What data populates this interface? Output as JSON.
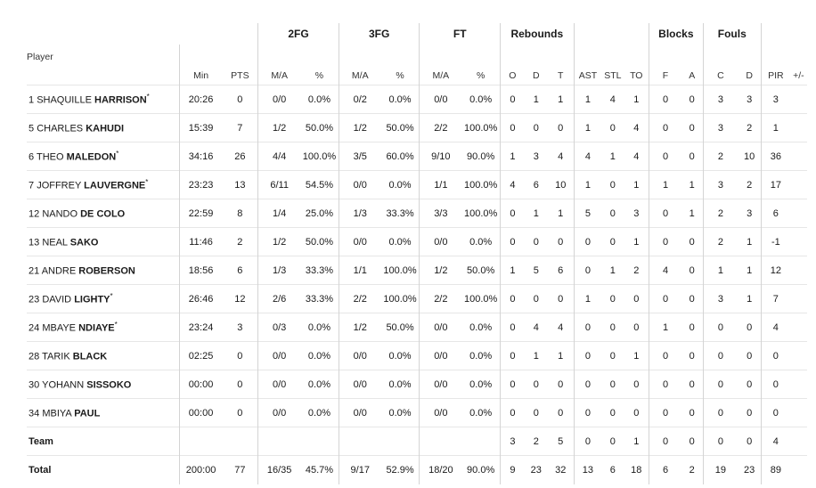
{
  "groups": {
    "fg2": "2FG",
    "fg3": "3FG",
    "ft": "FT",
    "rebounds": "Rebounds",
    "blocks": "Blocks",
    "fouls": "Fouls"
  },
  "columns": [
    "Player",
    "Min",
    "PTS",
    "M/A",
    "%",
    "M/A",
    "%",
    "M/A",
    "%",
    "O",
    "D",
    "T",
    "AST",
    "STL",
    "TO",
    "F",
    "A",
    "C",
    "D",
    "PIR",
    "+/-"
  ],
  "players": [
    {
      "num": "1",
      "first": "SHAQUILLE",
      "last": "HARRISON",
      "star": "*",
      "stats": [
        "20:26",
        "0",
        "0/0",
        "0.0%",
        "0/2",
        "0.0%",
        "0/0",
        "0.0%",
        "0",
        "1",
        "1",
        "1",
        "4",
        "1",
        "0",
        "0",
        "3",
        "3",
        "3",
        ""
      ]
    },
    {
      "num": "5",
      "first": "CHARLES",
      "last": "KAHUDI",
      "star": "",
      "stats": [
        "15:39",
        "7",
        "1/2",
        "50.0%",
        "1/2",
        "50.0%",
        "2/2",
        "100.0%",
        "0",
        "0",
        "0",
        "1",
        "0",
        "4",
        "0",
        "0",
        "3",
        "2",
        "1",
        ""
      ]
    },
    {
      "num": "6",
      "first": "THEO",
      "last": "MALEDON",
      "star": "*",
      "stats": [
        "34:16",
        "26",
        "4/4",
        "100.0%",
        "3/5",
        "60.0%",
        "9/10",
        "90.0%",
        "1",
        "3",
        "4",
        "4",
        "1",
        "4",
        "0",
        "0",
        "2",
        "10",
        "36",
        ""
      ]
    },
    {
      "num": "7",
      "first": "JOFFREY",
      "last": "LAUVERGNE",
      "star": "*",
      "stats": [
        "23:23",
        "13",
        "6/11",
        "54.5%",
        "0/0",
        "0.0%",
        "1/1",
        "100.0%",
        "4",
        "6",
        "10",
        "1",
        "0",
        "1",
        "1",
        "1",
        "3",
        "2",
        "17",
        ""
      ]
    },
    {
      "num": "12",
      "first": "NANDO",
      "last": "DE COLO",
      "star": "",
      "stats": [
        "22:59",
        "8",
        "1/4",
        "25.0%",
        "1/3",
        "33.3%",
        "3/3",
        "100.0%",
        "0",
        "1",
        "1",
        "5",
        "0",
        "3",
        "0",
        "1",
        "2",
        "3",
        "6",
        ""
      ]
    },
    {
      "num": "13",
      "first": "NEAL",
      "last": "SAKO",
      "star": "",
      "stats": [
        "11:46",
        "2",
        "1/2",
        "50.0%",
        "0/0",
        "0.0%",
        "0/0",
        "0.0%",
        "0",
        "0",
        "0",
        "0",
        "0",
        "1",
        "0",
        "0",
        "2",
        "1",
        "-1",
        ""
      ]
    },
    {
      "num": "21",
      "first": "ANDRE",
      "last": "ROBERSON",
      "star": "",
      "stats": [
        "18:56",
        "6",
        "1/3",
        "33.3%",
        "1/1",
        "100.0%",
        "1/2",
        "50.0%",
        "1",
        "5",
        "6",
        "0",
        "1",
        "2",
        "4",
        "0",
        "1",
        "1",
        "12",
        ""
      ]
    },
    {
      "num": "23",
      "first": "DAVID",
      "last": "LIGHTY",
      "star": "*",
      "stats": [
        "26:46",
        "12",
        "2/6",
        "33.3%",
        "2/2",
        "100.0%",
        "2/2",
        "100.0%",
        "0",
        "0",
        "0",
        "1",
        "0",
        "0",
        "0",
        "0",
        "3",
        "1",
        "7",
        ""
      ]
    },
    {
      "num": "24",
      "first": "MBAYE",
      "last": "NDIAYE",
      "star": "*",
      "stats": [
        "23:24",
        "3",
        "0/3",
        "0.0%",
        "1/2",
        "50.0%",
        "0/0",
        "0.0%",
        "0",
        "4",
        "4",
        "0",
        "0",
        "0",
        "1",
        "0",
        "0",
        "0",
        "4",
        ""
      ]
    },
    {
      "num": "28",
      "first": "TARIK",
      "last": "BLACK",
      "star": "",
      "stats": [
        "02:25",
        "0",
        "0/0",
        "0.0%",
        "0/0",
        "0.0%",
        "0/0",
        "0.0%",
        "0",
        "1",
        "1",
        "0",
        "0",
        "1",
        "0",
        "0",
        "0",
        "0",
        "0",
        ""
      ]
    },
    {
      "num": "30",
      "first": "YOHANN",
      "last": "SISSOKO",
      "star": "",
      "stats": [
        "00:00",
        "0",
        "0/0",
        "0.0%",
        "0/0",
        "0.0%",
        "0/0",
        "0.0%",
        "0",
        "0",
        "0",
        "0",
        "0",
        "0",
        "0",
        "0",
        "0",
        "0",
        "0",
        ""
      ]
    },
    {
      "num": "34",
      "first": "MBIYA",
      "last": "PAUL",
      "star": "",
      "stats": [
        "00:00",
        "0",
        "0/0",
        "0.0%",
        "0/0",
        "0.0%",
        "0/0",
        "0.0%",
        "0",
        "0",
        "0",
        "0",
        "0",
        "0",
        "0",
        "0",
        "0",
        "0",
        "0",
        ""
      ]
    }
  ],
  "team": {
    "label": "Team",
    "stats": [
      "",
      "",
      "",
      "",
      "",
      "",
      "",
      "",
      "3",
      "2",
      "5",
      "0",
      "0",
      "1",
      "0",
      "0",
      "0",
      "0",
      "4",
      ""
    ]
  },
  "total": {
    "label": "Total",
    "stats": [
      "200:00",
      "77",
      "16/35",
      "45.7%",
      "9/17",
      "52.9%",
      "18/20",
      "90.0%",
      "9",
      "23",
      "32",
      "13",
      "6",
      "18",
      "6",
      "2",
      "19",
      "23",
      "89",
      ""
    ]
  }
}
